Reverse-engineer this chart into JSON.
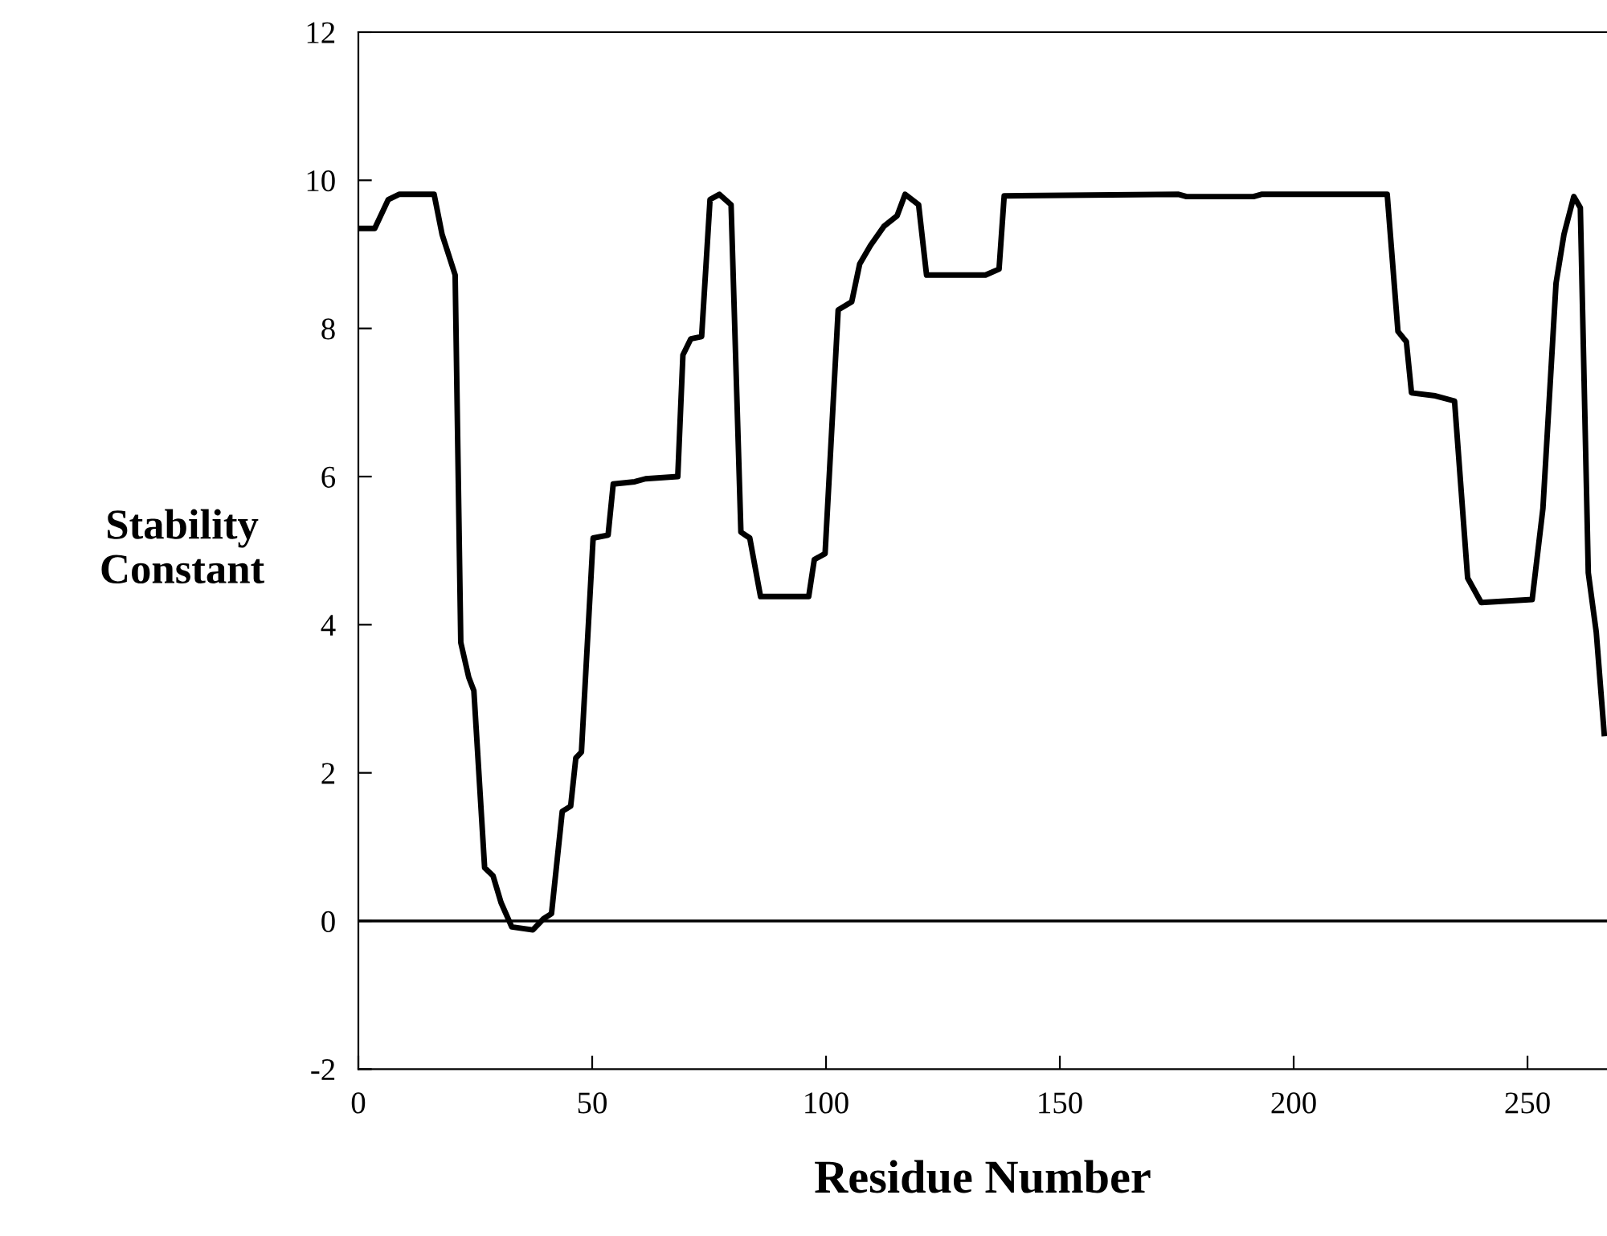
{
  "chart_data": {
    "type": "line",
    "xlabel": "Residue Number",
    "ylabel": "Stability\nConstant",
    "x": [
      0,
      3.5,
      6.4,
      8.7,
      16.2,
      17.9,
      20.7,
      21.9,
      23.6,
      24.7,
      27.0,
      28.8,
      30.5,
      32.8,
      37.3,
      39.6,
      41.3,
      43.6,
      45.4,
      46.5,
      47.7,
      50.2,
      53.4,
      54.5,
      59.1,
      61.4,
      68.3,
      69.4,
      71.1,
      73.4,
      75.2,
      77.2,
      79.7,
      81.8,
      83.7,
      86.0,
      96.3,
      97.5,
      99.8,
      102.6,
      105.5,
      107.2,
      109.5,
      112.4,
      115.2,
      116.9,
      119.8,
      121.5,
      134.1,
      137.0,
      138.1,
      175.4,
      177.1,
      191.4,
      193.1,
      220.0,
      222.3,
      224.1,
      225.2,
      230.3,
      234.4,
      237.2,
      240.1,
      251.0,
      253.3,
      256.1,
      257.8,
      259.9,
      261.3,
      263.0,
      264.7,
      266.4
    ],
    "series": [
      {
        "color": "#000000",
        "values": [
          9.35,
          9.35,
          9.74,
          9.81,
          9.81,
          9.27,
          8.72,
          3.76,
          3.29,
          3.11,
          0.72,
          0.61,
          0.25,
          -0.08,
          -0.12,
          0.03,
          0.1,
          1.48,
          1.55,
          2.2,
          2.28,
          5.17,
          5.21,
          5.9,
          5.93,
          5.97,
          6.0,
          7.64,
          7.86,
          7.89,
          9.74,
          9.81,
          9.67,
          5.25,
          5.17,
          4.38,
          4.38,
          4.88,
          4.96,
          8.25,
          8.36,
          8.87,
          9.12,
          9.38,
          9.52,
          9.81,
          9.67,
          8.72,
          8.72,
          8.8,
          9.79,
          9.81,
          9.78,
          9.78,
          9.81,
          9.81,
          7.96,
          7.82,
          7.13,
          7.09,
          7.02,
          4.63,
          4.3,
          4.34,
          5.57,
          8.61,
          9.27,
          9.78,
          9.63,
          4.7,
          3.9,
          2.53
        ]
      }
    ],
    "xlim": [
      0,
      267
    ],
    "xticks": [
      0,
      50,
      100,
      150,
      200,
      250
    ],
    "ylim": [
      -2,
      12
    ],
    "yticks": [
      -2,
      0,
      2,
      4,
      6,
      8,
      10,
      12
    ],
    "ref_lines": [
      {
        "axis": "y",
        "value": 0,
        "color": "#000000"
      }
    ],
    "grid": false,
    "legend": false,
    "marker": "none",
    "line_style": "solid"
  }
}
